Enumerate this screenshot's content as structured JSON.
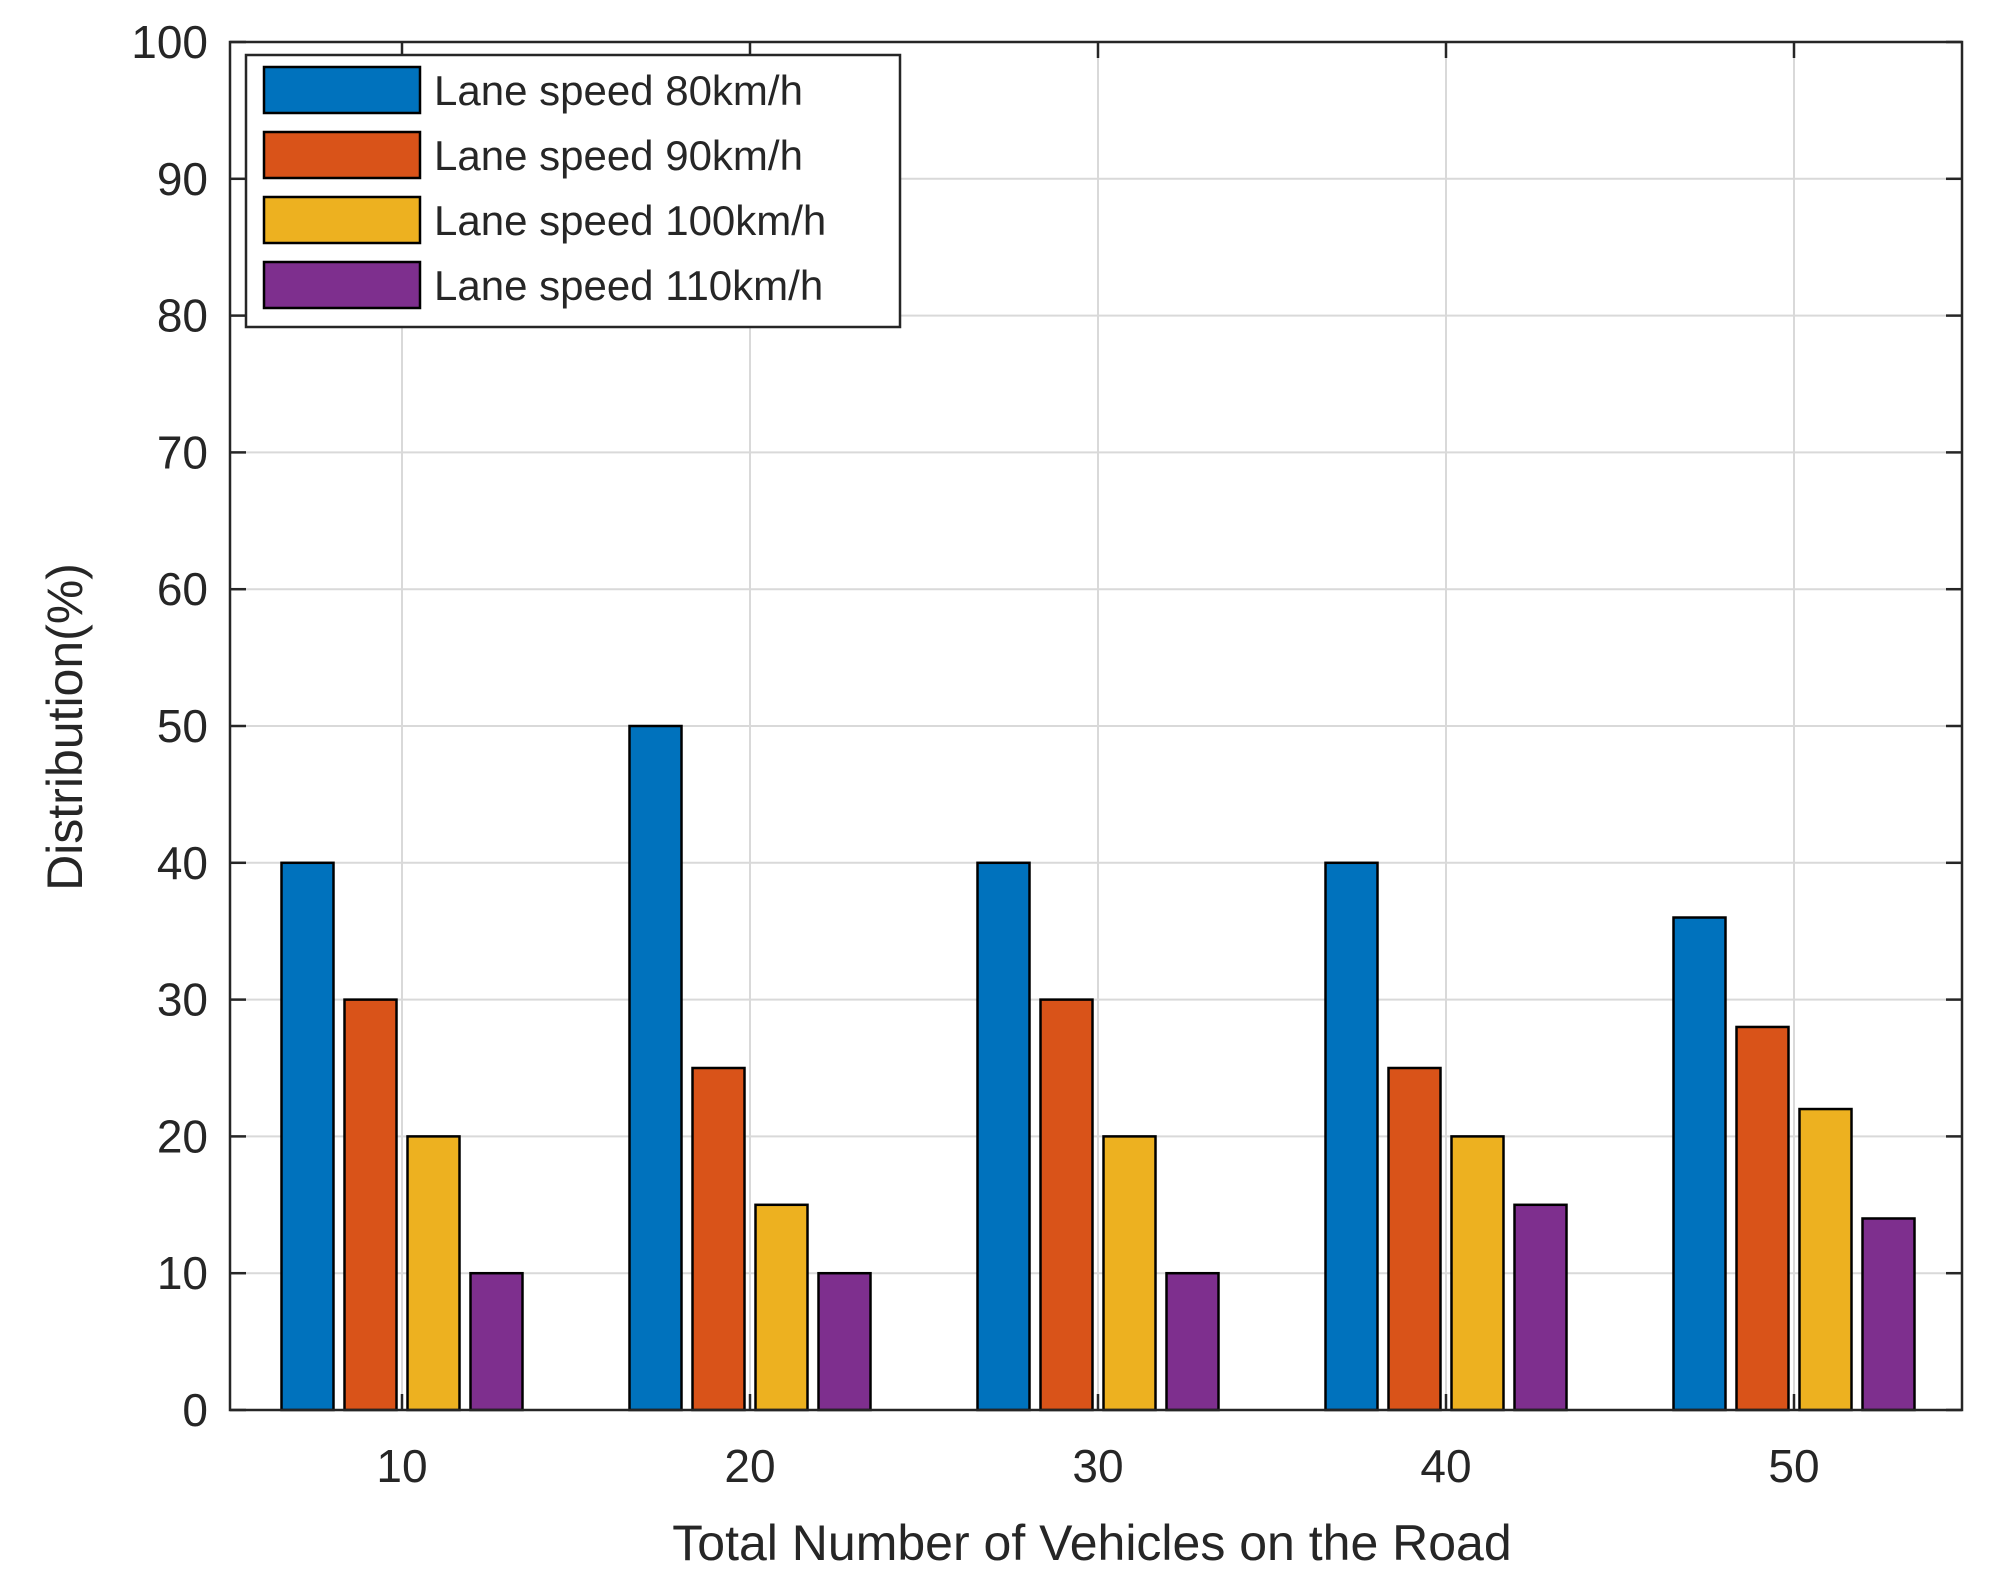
{
  "chart_data": {
    "type": "bar",
    "categories": [
      "10",
      "20",
      "30",
      "40",
      "50"
    ],
    "series": [
      {
        "name": "Lane speed 80km/h",
        "values": [
          40,
          50,
          40,
          40,
          36
        ],
        "color": "#0072BD"
      },
      {
        "name": "Lane speed 90km/h",
        "values": [
          30,
          25,
          30,
          25,
          28
        ],
        "color": "#D95319"
      },
      {
        "name": "Lane speed 100km/h",
        "values": [
          20,
          15,
          20,
          20,
          22
        ],
        "color": "#EDB120"
      },
      {
        "name": "Lane speed 110km/h",
        "values": [
          10,
          10,
          10,
          15,
          14
        ],
        "color": "#7E2F8E"
      }
    ],
    "xlabel": "Total Number of Vehicles on the Road",
    "ylabel": "Distribution(%)",
    "ylim": [
      0,
      100
    ],
    "yticks": [
      "0",
      "10",
      "20",
      "30",
      "40",
      "50",
      "60",
      "70",
      "80",
      "90",
      "100"
    ],
    "grid": true,
    "legend_position": "top-left"
  }
}
